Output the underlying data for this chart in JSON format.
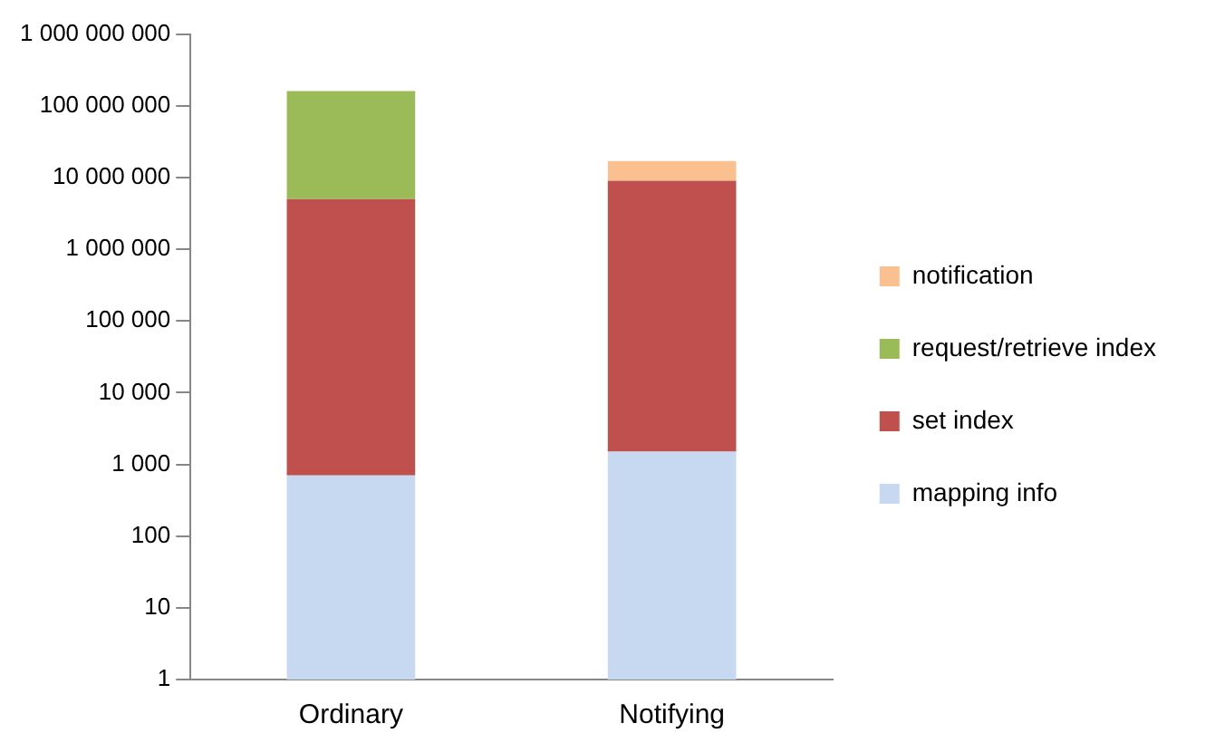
{
  "chart_data": {
    "type": "bar",
    "stacked": true,
    "log": "y",
    "categories": [
      "Ordinary",
      "Notifying"
    ],
    "series": [
      {
        "name": "mapping info",
        "color": "#c6d9f1",
        "values": [
          700,
          1500
        ]
      },
      {
        "name": "set index",
        "color": "#c0504d",
        "values": [
          5000000,
          9000000
        ]
      },
      {
        "name": "request/retrieve index",
        "color": "#9bbb59",
        "values": [
          155000000,
          null
        ]
      },
      {
        "name": "notification",
        "color": "#fac090",
        "values": [
          null,
          8000000
        ]
      }
    ],
    "ylim": [
      1,
      1000000000
    ],
    "yticks": [
      1,
      10,
      100,
      {
        "value": 1000,
        "label": "1 000"
      },
      {
        "value": 10000,
        "label": "10 000"
      },
      {
        "value": 100000,
        "label": "100 000"
      },
      {
        "value": 1000000,
        "label": "1 000 000"
      },
      {
        "value": 10000000,
        "label": "10 000 000"
      },
      {
        "value": 100000000,
        "label": "100 000 000"
      },
      {
        "value": 1000000000,
        "label": "1 000 000 000"
      }
    ],
    "grid": false,
    "legend": "right"
  }
}
